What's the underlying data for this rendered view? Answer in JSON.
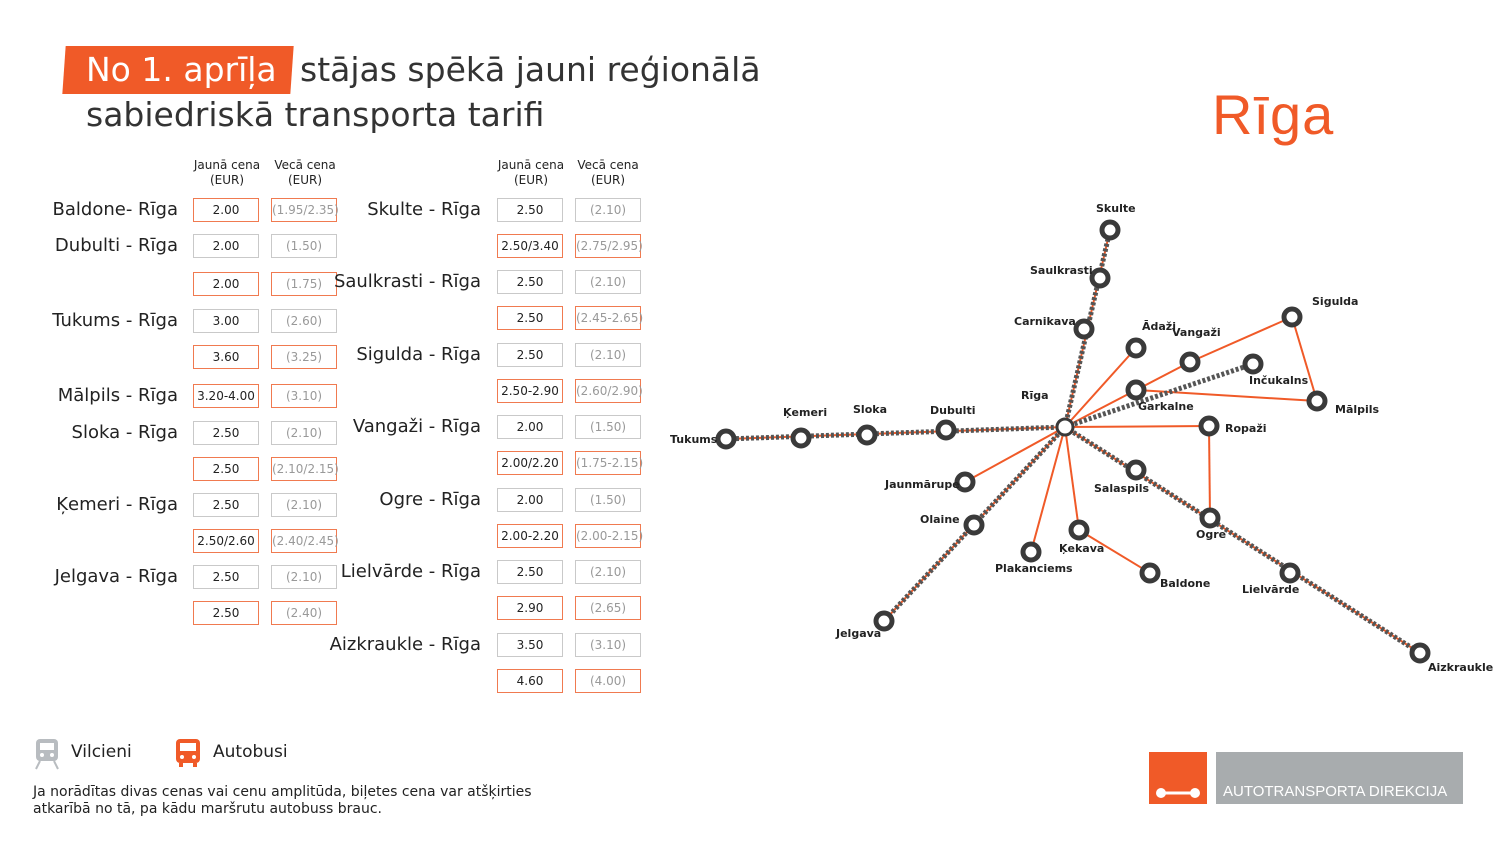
{
  "header": {
    "tag": "No 1. aprīļa",
    "line1": "stājas spēkā jauni reģionālā",
    "line2": "sabiedriskā transporta tarifi",
    "city_logo": "Rīga"
  },
  "table": {
    "col_new": "Jaunā cena (EUR)",
    "col_old": "Vecā cena (EUR)",
    "left_routes": [
      {
        "name": "Baldone- Rīga",
        "rows": [
          {
            "new": "2.00",
            "old": "(1.95/2.35)",
            "type": "bus"
          }
        ]
      },
      {
        "name": "Dubulti - Rīga",
        "rows": [
          {
            "new": "2.00",
            "old": "(1.50)",
            "type": "train"
          },
          {
            "new": "2.00",
            "old": "(1.75)",
            "type": "bus"
          }
        ]
      },
      {
        "name": "Tukums - Rīga",
        "rows": [
          {
            "new": "3.00",
            "old": "(2.60)",
            "type": "train"
          },
          {
            "new": "3.60",
            "old": "(3.25)",
            "type": "bus"
          }
        ]
      },
      {
        "name": "Mālpils - Rīga",
        "rows": [
          {
            "new": "3.20-4.00",
            "old": "(3.10)",
            "type": "bus"
          }
        ]
      },
      {
        "name": "Sloka - Rīga",
        "rows": [
          {
            "new": "2.50",
            "old": "(2.10)",
            "type": "train"
          },
          {
            "new": "2.50",
            "old": "(2.10/2.15)",
            "type": "bus"
          }
        ]
      },
      {
        "name": "Ķemeri - Rīga",
        "rows": [
          {
            "new": "2.50",
            "old": "(2.10)",
            "type": "train"
          },
          {
            "new": "2.50/2.60",
            "old": "(2.40/2.45)",
            "type": "bus"
          }
        ]
      },
      {
        "name": "Jelgava - Rīga",
        "rows": [
          {
            "new": "2.50",
            "old": "(2.10)",
            "type": "train"
          },
          {
            "new": "2.50",
            "old": "(2.40)",
            "type": "bus"
          }
        ]
      }
    ],
    "right_routes": [
      {
        "name": "Skulte - Rīga",
        "rows": [
          {
            "new": "2.50",
            "old": "(2.10)",
            "type": "train"
          },
          {
            "new": "2.50/3.40",
            "old": "(2.75/2.95)",
            "type": "bus"
          }
        ]
      },
      {
        "name": "Saulkrasti - Rīga",
        "rows": [
          {
            "new": "2.50",
            "old": "(2.10)",
            "type": "train"
          },
          {
            "new": "2.50",
            "old": "(2.45-2.65)",
            "type": "bus"
          }
        ]
      },
      {
        "name": "Sigulda - Rīga",
        "rows": [
          {
            "new": "2.50",
            "old": "(2.10)",
            "type": "train"
          },
          {
            "new": "2.50-2.90",
            "old": "(2.60/2.90)",
            "type": "bus"
          }
        ]
      },
      {
        "name": "Vangaži - Rīga",
        "rows": [
          {
            "new": "2.00",
            "old": "(1.50)",
            "type": "train"
          },
          {
            "new": "2.00/2.20",
            "old": "(1.75-2.15)",
            "type": "bus"
          }
        ]
      },
      {
        "name": "Ogre - Rīga",
        "rows": [
          {
            "new": "2.00",
            "old": "(1.50)",
            "type": "train"
          },
          {
            "new": "2.00-2.20",
            "old": "(2.00-2.15)",
            "type": "bus"
          }
        ]
      },
      {
        "name": "Lielvārde - Rīga",
        "rows": [
          {
            "new": "2.50",
            "old": "(2.10)",
            "type": "train"
          },
          {
            "new": "2.90",
            "old": "(2.65)",
            "type": "bus"
          }
        ]
      },
      {
        "name": "Aizkraukle - Rīga",
        "rows": [
          {
            "new": "3.50",
            "old": "(3.10)",
            "type": "train"
          },
          {
            "new": "4.60",
            "old": "(4.00)",
            "type": "bus"
          }
        ]
      }
    ]
  },
  "map": {
    "stations": [
      "Skulte",
      "Saulkrasti",
      "Carnikava",
      "Ādaži",
      "Vangaži",
      "Sigulda",
      "Inčukalns",
      "Garkalne",
      "Mālpils",
      "Rīga",
      "Ropaži",
      "Dubulti",
      "Sloka",
      "Ķemeri",
      "Tukums",
      "Jaunmārupe",
      "Olaine",
      "Jelgava",
      "Plakanciems",
      "Ķekava",
      "Baldone",
      "Salaspils",
      "Ogre",
      "Lielvārde",
      "Aizkraukle"
    ],
    "train_color": "#555555",
    "bus_color": "#f05a28"
  },
  "legend": {
    "train_label": "Vilcieni",
    "bus_label": "Autobusi",
    "train_icon": "train-icon",
    "bus_icon": "bus-icon"
  },
  "footnote": "Ja norādītas divas cenas vai cenu amplitūda, biļetes cena var atšķirties atkarībā no tā, pa kādu maršrutu autobuss brauc.",
  "branding": {
    "org": "AUTOTRANSPORTA DIREKCIJA",
    "accent": "#f05a28"
  }
}
